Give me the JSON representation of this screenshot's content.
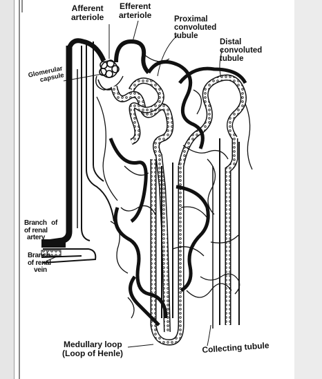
{
  "labels": {
    "afferent_1": "Afferent",
    "afferent_2": "arteriole",
    "efferent_1": "Efferent",
    "efferent_2": "arteriole",
    "proximal_1": "Proximal",
    "proximal_2": "convoluted",
    "proximal_3": "tubule",
    "distal_1": "Distal",
    "distal_2": "convoluted",
    "distal_3": "tubule",
    "glomerular_1": "Glomerular",
    "glomerular_2": "capsule",
    "renal_artery_1": "Branch",
    "renal_artery_of": "of",
    "renal_artery_2": "of renal",
    "renal_artery_3": "artery",
    "renal_vein_1": "Branch",
    "renal_vein_2": "of renal",
    "renal_vein_3": "vein",
    "medullary_1": "Medullary loop",
    "medullary_2": "(Loop of Henle)",
    "collecting": "Collecting tubule"
  },
  "colors": {
    "ink": "#111111",
    "paper": "#ffffff",
    "background": "#d9d9d9"
  }
}
